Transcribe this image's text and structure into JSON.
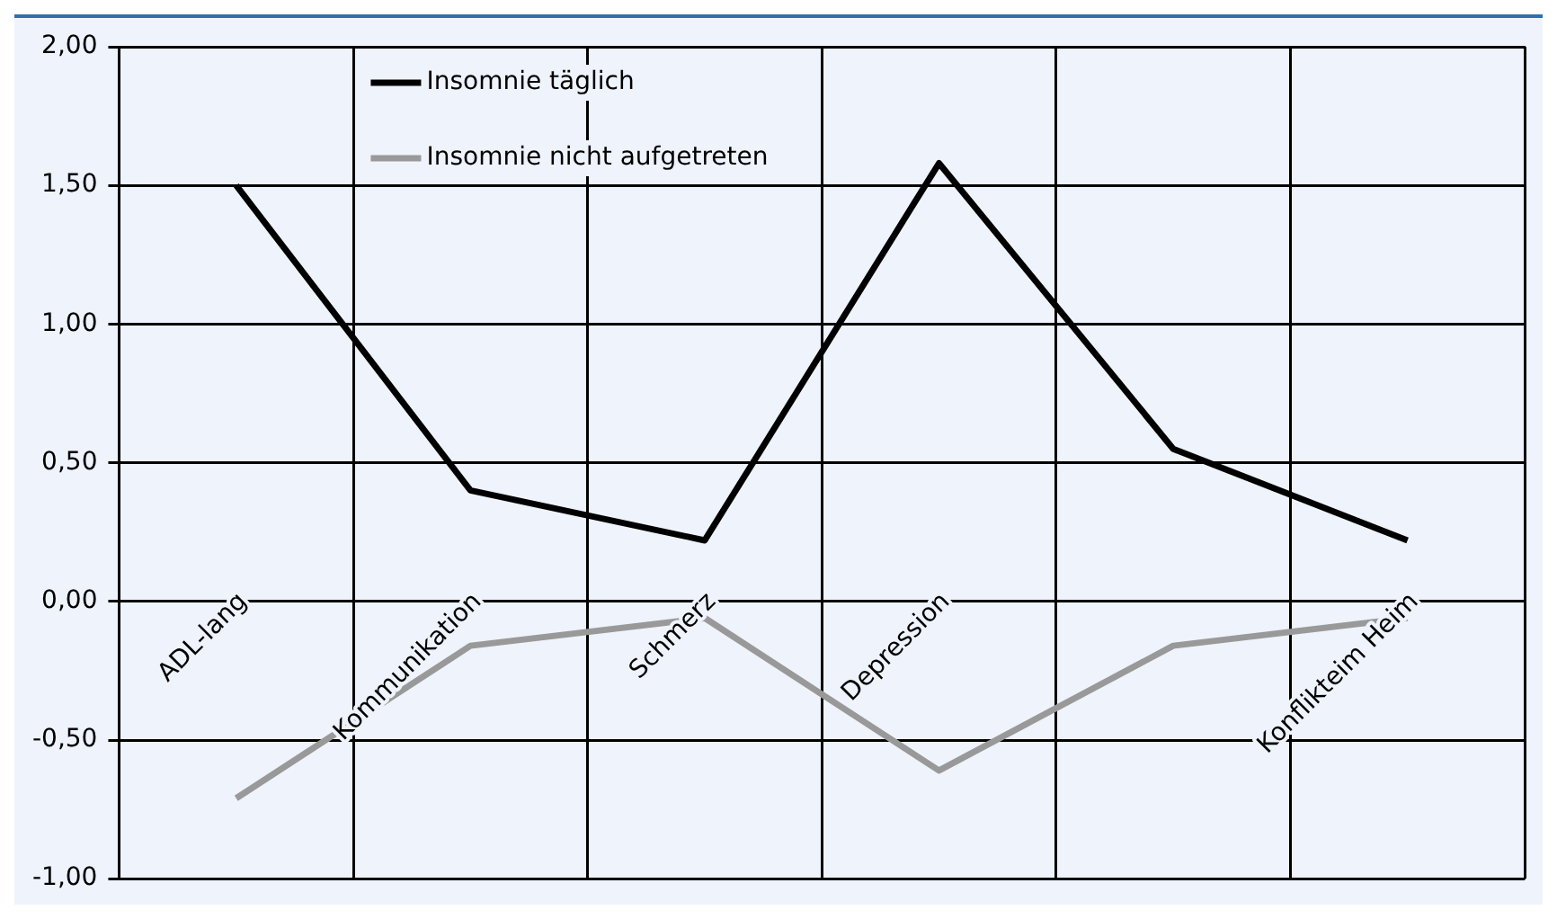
{
  "chart_data": {
    "type": "line",
    "categories": [
      "ADL-lang",
      "Kommunikation",
      "Schmerz",
      "Depression",
      null,
      "Konflikteim Heim"
    ],
    "series": [
      {
        "name": "Insomnie täglich",
        "color": "#000000",
        "values": [
          1.5,
          0.4,
          0.22,
          1.58,
          0.55,
          0.22
        ]
      },
      {
        "name": "Insomnie nicht aufgetreten",
        "color": "#999999",
        "values": [
          -0.71,
          -0.16,
          -0.06,
          -0.61,
          -0.16,
          -0.06
        ]
      }
    ],
    "ylim": [
      -1,
      2
    ],
    "yticks": [
      {
        "value": -1,
        "label": "-1,00"
      },
      {
        "value": -0.5,
        "label": "-0,50"
      },
      {
        "value": 0,
        "label": "0,00"
      },
      {
        "value": 0.5,
        "label": "0,50"
      },
      {
        "value": 1,
        "label": "1,00"
      },
      {
        "value": 1.5,
        "label": "1,50"
      },
      {
        "value": 2,
        "label": "2,00"
      }
    ],
    "grid": true,
    "legend": "top left",
    "marker": "none",
    "line_style": "solid"
  }
}
